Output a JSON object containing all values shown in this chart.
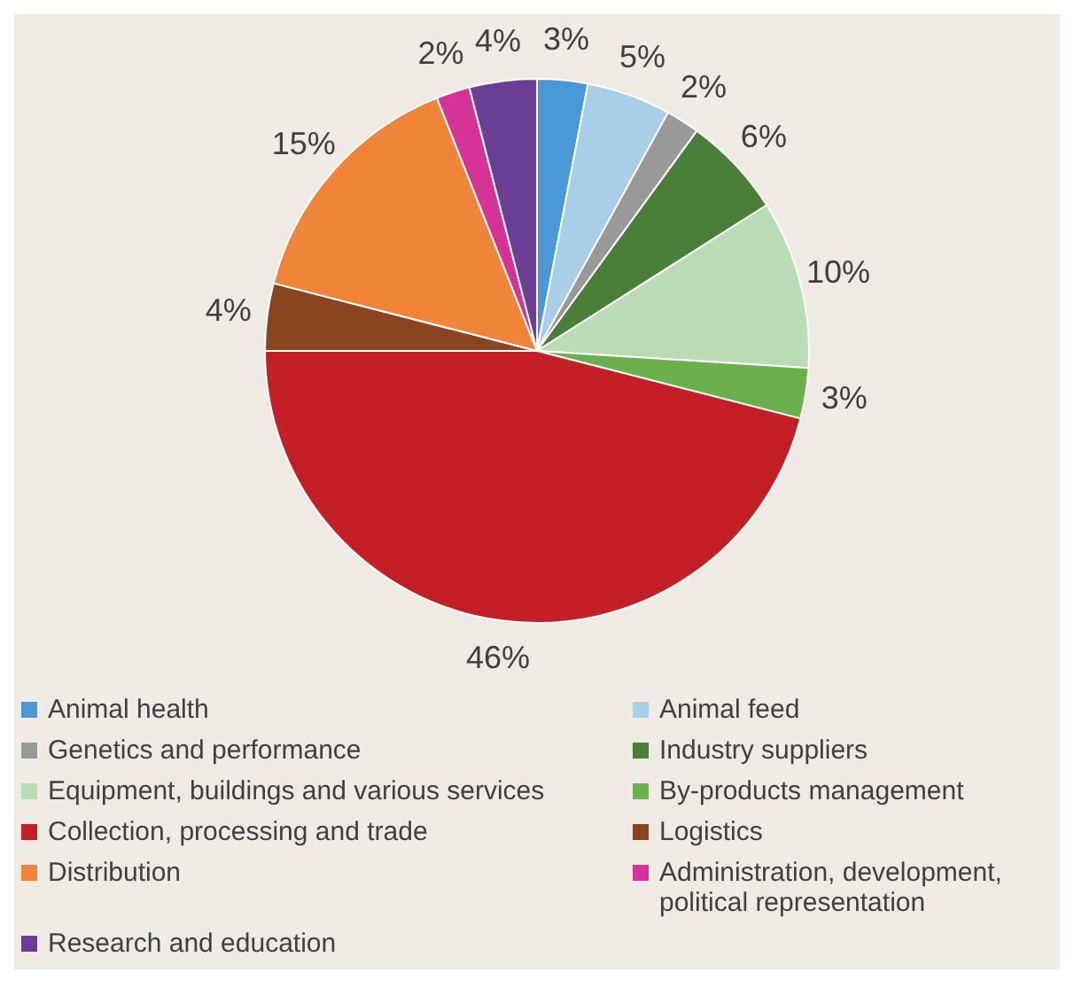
{
  "chart_data": {
    "type": "pie",
    "categories": [
      "Animal health",
      "Animal feed",
      "Genetics and performance",
      "Industry suppliers",
      "Equipment, buildings and various services",
      "By-products management",
      "Collection, processing and trade",
      "Logistics",
      "Distribution",
      "Administration, development, political representation",
      "Research and education"
    ],
    "values": [
      3,
      5,
      2,
      6,
      10,
      3,
      46,
      4,
      15,
      2,
      4
    ],
    "value_labels": [
      "3%",
      "5%",
      "2%",
      "6%",
      "10%",
      "3%",
      "46%",
      "4%",
      "15%",
      "2%",
      "4%"
    ],
    "colors": [
      "#4a98d6",
      "#a9cfe8",
      "#999999",
      "#4a7f3a",
      "#b9dcb5",
      "#6ab04c",
      "#c41f26",
      "#8b4420",
      "#f08539",
      "#d63399",
      "#6b3f96"
    ],
    "legend": "bottom"
  }
}
